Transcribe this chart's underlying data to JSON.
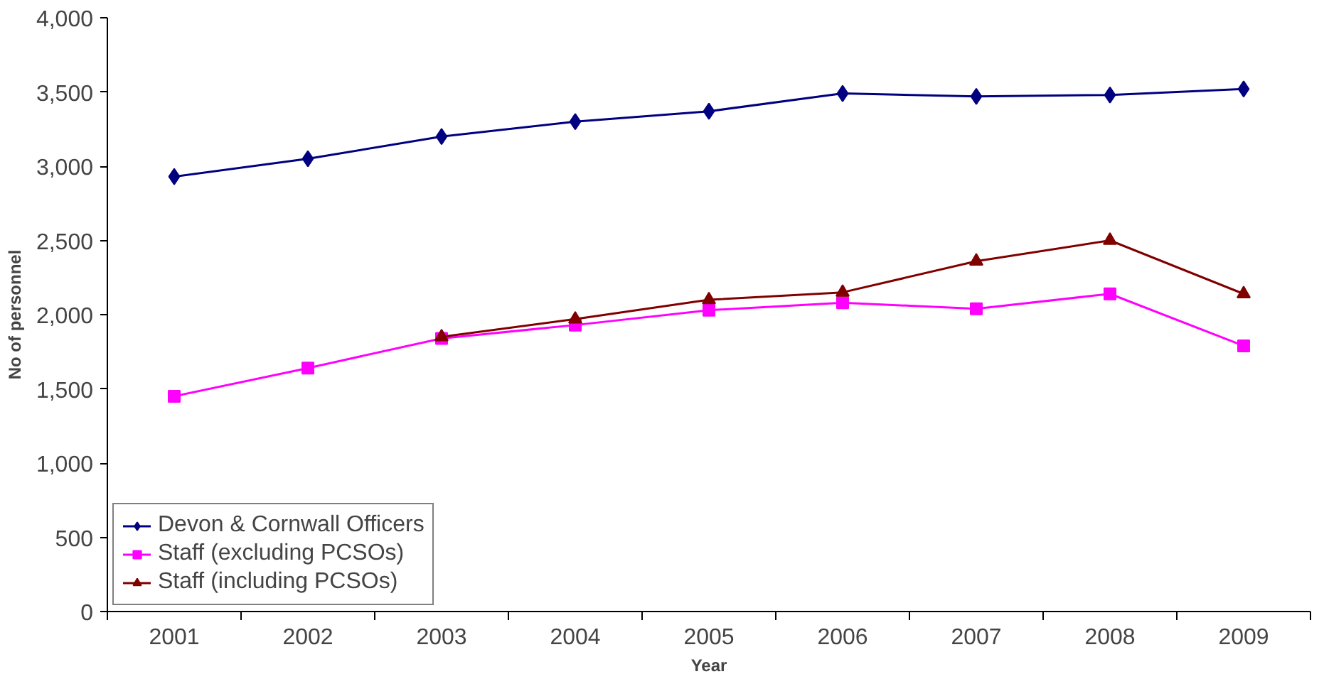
{
  "chart_data": {
    "type": "line",
    "xlabel": "Year",
    "ylabel": "No of personnel",
    "categories": [
      "2001",
      "2002",
      "2003",
      "2004",
      "2005",
      "2006",
      "2007",
      "2008",
      "2009"
    ],
    "series": [
      {
        "name": "Devon & Cornwall Officers",
        "color": "#000080",
        "marker": "diamond",
        "values": [
          2930,
          3050,
          3200,
          3300,
          3370,
          3490,
          3470,
          3480,
          3520
        ]
      },
      {
        "name": "Staff (excluding PCSOs)",
        "color": "#ff00ff",
        "marker": "square",
        "values": [
          1450,
          1640,
          1840,
          1930,
          2030,
          2080,
          2040,
          2140,
          1790
        ]
      },
      {
        "name": "Staff (including PCSOs)",
        "color": "#800000",
        "marker": "triangle",
        "values": [
          null,
          null,
          1850,
          1970,
          2100,
          2150,
          2360,
          2500,
          2140
        ]
      }
    ],
    "ylim": [
      0,
      4000
    ],
    "yticks": [
      {
        "value": 0,
        "label": "0"
      },
      {
        "value": 500,
        "label": "500"
      },
      {
        "value": 1000,
        "label": "1,000"
      },
      {
        "value": 1500,
        "label": "1,500"
      },
      {
        "value": 2000,
        "label": "2,000"
      },
      {
        "value": 2500,
        "label": "2,500"
      },
      {
        "value": 3000,
        "label": "3,000"
      },
      {
        "value": 3500,
        "label": "3,500"
      },
      {
        "value": 4000,
        "label": "4,000"
      }
    ],
    "grid": false,
    "legend": "bottom left"
  }
}
